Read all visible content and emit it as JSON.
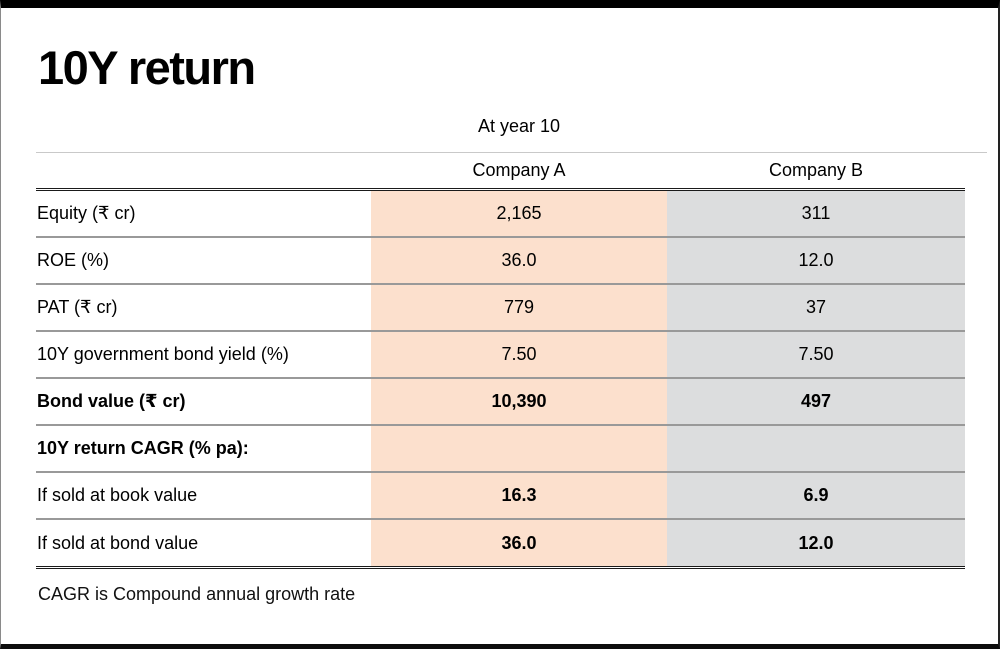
{
  "title": "10Y return",
  "footnote": "CAGR is Compound annual growth rate",
  "colors": {
    "company_a_bg": "#fce0cd",
    "company_b_bg": "#dcddde",
    "row_divider": "#9b9b9b",
    "heavy_rule": "#1a1a1a"
  },
  "chart_data": {
    "type": "table",
    "title": "10Y return",
    "group_header": "At year 10",
    "columns": [
      "Company A",
      "Company B"
    ],
    "row_labels": [
      "Equity (₹ cr)",
      "ROE (%)",
      "PAT (₹ cr)",
      "10Y government bond yield (%)",
      "Bond value (₹ cr)",
      "10Y return CAGR (% pa):",
      "If sold at book value",
      "If sold at bond value"
    ],
    "rows": [
      {
        "label": "Equity (₹ cr)",
        "a": "2,165",
        "b": "311"
      },
      {
        "label": "ROE (%)",
        "a": "36.0",
        "b": "12.0"
      },
      {
        "label": "PAT (₹ cr)",
        "a": "779",
        "b": "37"
      },
      {
        "label": "10Y government bond yield (%)",
        "a": "7.50",
        "b": "7.50"
      },
      {
        "label": "Bond value (₹ cr)",
        "a": "10,390",
        "b": "497"
      },
      {
        "label": "10Y return CAGR (% pa):",
        "a": "",
        "b": ""
      },
      {
        "label": "If sold at book value",
        "a": "16.3",
        "b": "6.9"
      },
      {
        "label": "If sold at bond value",
        "a": "36.0",
        "b": "12.0"
      }
    ],
    "footnote": "CAGR is Compound annual growth rate",
    "layout_hints": {
      "company_a_highlight": "peach",
      "company_b_highlight": "gray",
      "bold_rows": [
        "Bond value (₹ cr)",
        "10Y return CAGR (% pa):"
      ],
      "bold_value_rows": [
        "If sold at book value",
        "If sold at bond value"
      ]
    }
  }
}
